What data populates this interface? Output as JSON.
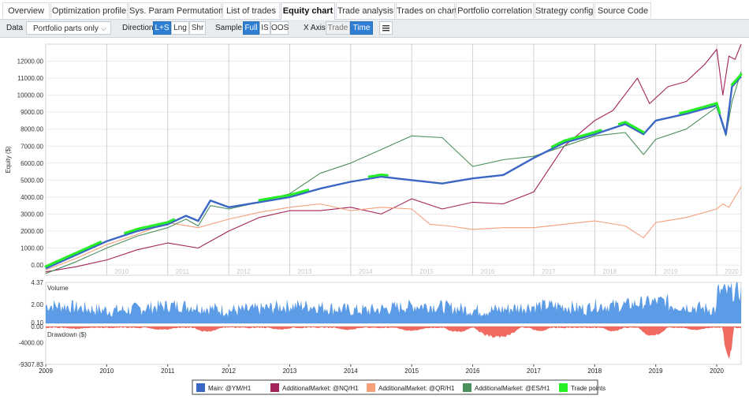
{
  "tabs": [
    "Overview",
    "Optimization profile",
    "Sys. Param Permutation",
    "List of trades",
    "Equity chart",
    "Trade analysis",
    "Trades on chart",
    "Portfolio correlation",
    "Strategy config",
    "Source Code"
  ],
  "active_tab": "Equity chart",
  "toolbar": {
    "data_label": "Data",
    "data_value": "Portfolio parts only",
    "direction_label": "Direction",
    "direction_options": [
      "L+S",
      "Lng",
      "Shr"
    ],
    "direction_selected": "L+S",
    "sample_label": "Sample",
    "sample_options": [
      "Full",
      "IS",
      "OOS"
    ],
    "sample_selected": "Full",
    "xaxis_label": "X Axis",
    "xaxis_options": [
      "Trade",
      "Time"
    ],
    "xaxis_selected": "Time",
    "menu_icon": "hamburger-menu-icon"
  },
  "chart_data": {
    "type": "line",
    "ylabel": "Equity ($)",
    "equity_ticks": [
      "0.00",
      "1000.00",
      "2000.00",
      "3000.00",
      "4000.00",
      "5000.00",
      "6000.00",
      "7000.00",
      "8000.00",
      "9000.00",
      "10000.00",
      "11000.00",
      "12000.00"
    ],
    "ylim": [
      -600,
      13000
    ],
    "x_years": [
      "2009",
      "2010",
      "2011",
      "2012",
      "2013",
      "2014",
      "2015",
      "2016",
      "2017",
      "2018",
      "2019",
      "2020"
    ],
    "watermark_years": [
      "2010",
      "2011",
      "2012",
      "2013",
      "2014",
      "2015",
      "2016",
      "2017",
      "2018",
      "2019",
      "2020"
    ],
    "series": [
      {
        "name": "Main: @YM/H1",
        "color": "#3a66c4",
        "x": [
          2009.0,
          2009.5,
          2010.0,
          2010.5,
          2011.0,
          2011.3,
          2011.5,
          2011.7,
          2012.0,
          2012.5,
          2013.0,
          2013.5,
          2014.0,
          2014.5,
          2015.0,
          2015.5,
          2016.0,
          2016.5,
          2017.0,
          2017.5,
          2018.0,
          2018.5,
          2018.8,
          2019.0,
          2019.5,
          2020.0,
          2020.15,
          2020.25,
          2020.4
        ],
        "y": [
          -200,
          600,
          1400,
          2000,
          2400,
          2900,
          2600,
          3800,
          3400,
          3700,
          4000,
          4500,
          4900,
          5200,
          5000,
          4800,
          5100,
          5300,
          6300,
          7200,
          7700,
          8300,
          7700,
          8500,
          8900,
          9400,
          7700,
          10500,
          11100
        ]
      },
      {
        "name": "AdditionalMarket: @NQ/H1",
        "color": "#a3235b",
        "x": [
          2009.0,
          2009.5,
          2010.0,
          2010.5,
          2011.0,
          2011.5,
          2012.0,
          2012.5,
          2013.0,
          2013.5,
          2014.0,
          2014.5,
          2015.0,
          2015.5,
          2016.0,
          2016.5,
          2017.0,
          2017.5,
          2018.0,
          2018.3,
          2018.7,
          2018.9,
          2019.2,
          2019.5,
          2019.8,
          2020.0,
          2020.1,
          2020.2,
          2020.3,
          2020.4
        ],
        "y": [
          -400,
          -100,
          300,
          900,
          1300,
          1000,
          2000,
          2800,
          3200,
          3200,
          3400,
          3000,
          3900,
          3300,
          3700,
          3600,
          4300,
          7000,
          8500,
          9100,
          11000,
          9500,
          10500,
          10800,
          11800,
          12700,
          10000,
          12300,
          12100,
          13000
        ]
      },
      {
        "name": "AdditionalMarket: @QR/H1",
        "color": "#f5a07a",
        "x": [
          2009.0,
          2009.5,
          2010.0,
          2010.5,
          2011.0,
          2011.5,
          2012.0,
          2012.5,
          2013.0,
          2013.5,
          2014.0,
          2014.5,
          2015.0,
          2015.3,
          2015.6,
          2016.0,
          2016.5,
          2017.0,
          2017.5,
          2018.0,
          2018.5,
          2018.8,
          2019.0,
          2019.5,
          2020.0,
          2020.1,
          2020.2,
          2020.4
        ],
        "y": [
          -300,
          400,
          1200,
          1800,
          2500,
          2200,
          2700,
          3100,
          3400,
          3600,
          3200,
          3400,
          3300,
          2400,
          2300,
          2100,
          2200,
          2200,
          2400,
          2600,
          2300,
          1600,
          2500,
          2800,
          3300,
          3600,
          3400,
          4600
        ]
      },
      {
        "name": "AdditionalMarket: @ES/H1",
        "color": "#4a8f5c",
        "x": [
          2009.0,
          2009.5,
          2010.0,
          2010.5,
          2011.0,
          2011.3,
          2011.5,
          2011.7,
          2012.0,
          2012.5,
          2013.0,
          2013.5,
          2014.0,
          2014.5,
          2015.0,
          2015.5,
          2016.0,
          2016.5,
          2017.0,
          2017.5,
          2018.0,
          2018.5,
          2018.8,
          2019.0,
          2019.5,
          2020.0,
          2020.15,
          2020.25,
          2020.4
        ],
        "y": [
          -500,
          200,
          1000,
          1700,
          2200,
          2700,
          2300,
          3500,
          3300,
          3700,
          4200,
          5400,
          6000,
          6800,
          7600,
          7500,
          5800,
          6200,
          6400,
          7000,
          7600,
          7800,
          6500,
          7400,
          8000,
          9300,
          7600,
          9600,
          11400
        ]
      },
      {
        "name": "Trade points",
        "color": "#26ef26",
        "x": [],
        "y": []
      }
    ],
    "volume": {
      "label": "Volume",
      "ticks": [
        "4.37",
        "2.00",
        "0.10"
      ],
      "ylim": [
        0,
        4.37
      ],
      "color": "#4a90e2"
    },
    "drawdown": {
      "label": "Drawdown ($)",
      "ticks": [
        "0.00",
        "-4000.00",
        "-9307.83"
      ],
      "ylim": [
        -9307.83,
        0
      ],
      "color": "#f05a50"
    },
    "legend_position": "bottom-center"
  }
}
